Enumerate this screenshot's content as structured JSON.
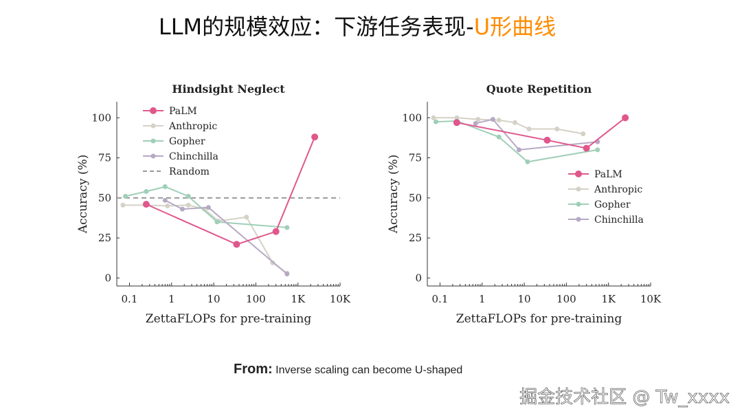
{
  "slide": {
    "title_main": "LLM的规模效应：下游任务表现-",
    "title_accent": "U形曲线",
    "accent_color": "#ff8c00"
  },
  "source": {
    "label": "From:",
    "text": "Inverse scaling can become U-shaped"
  },
  "watermark": "掘金技术社区 @ Tw_xxxx",
  "chart_data": [
    {
      "type": "line",
      "title": "Hindsight Neglect",
      "xlabel": "ZettaFLOPs for pre-training",
      "ylabel": "Accuracy (%)",
      "xscale": "log",
      "xlim": [
        0.05,
        10000
      ],
      "ylim": [
        -5,
        110
      ],
      "xticks": [
        0.1,
        1,
        10,
        100,
        1000,
        10000
      ],
      "xtick_labels": [
        "0.1",
        "1",
        "10",
        "100",
        "1K",
        "10K"
      ],
      "yticks": [
        0,
        25,
        50,
        75,
        100
      ],
      "legend_position": "top-left",
      "reference_line": {
        "name": "Random",
        "y": 50
      },
      "series": [
        {
          "name": "PaLM",
          "color": "#e0578c",
          "points": [
            [
              0.25,
              46
            ],
            [
              35,
              21
            ],
            [
              300,
              29
            ],
            [
              2500,
              88
            ]
          ]
        },
        {
          "name": "Anthropic",
          "color": "#d5d1c6",
          "points": [
            [
              0.07,
              45.5
            ],
            [
              0.25,
              45.5
            ],
            [
              0.8,
              45
            ],
            [
              2.5,
              45.5
            ],
            [
              6,
              43
            ],
            [
              13,
              35.5
            ],
            [
              60,
              38
            ],
            [
              250,
              9.5
            ],
            [
              550,
              3
            ]
          ]
        },
        {
          "name": "Gopher",
          "color": "#9fcfb7",
          "points": [
            [
              0.08,
              51
            ],
            [
              0.25,
              54
            ],
            [
              0.7,
              57
            ],
            [
              2.5,
              51
            ],
            [
              12,
              35
            ],
            [
              550,
              31.5
            ]
          ]
        },
        {
          "name": "Chinchilla",
          "color": "#b7a9c5",
          "points": [
            [
              0.7,
              48.5
            ],
            [
              1.8,
              43
            ],
            [
              7.5,
              44
            ],
            [
              550,
              2.5
            ]
          ]
        }
      ]
    },
    {
      "type": "line",
      "title": "Quote Repetition",
      "xlabel": "ZettaFLOPs for pre-training",
      "ylabel": "Accuracy (%)",
      "xscale": "log",
      "xlim": [
        0.05,
        10000
      ],
      "ylim": [
        -5,
        110
      ],
      "xticks": [
        0.1,
        1,
        10,
        100,
        1000,
        10000
      ],
      "xtick_labels": [
        "0.1",
        "1",
        "10",
        "100",
        "1K",
        "10K"
      ],
      "yticks": [
        0,
        25,
        50,
        75,
        100
      ],
      "legend_position": "middle-right",
      "series": [
        {
          "name": "PaLM",
          "color": "#e0578c",
          "points": [
            [
              0.25,
              97
            ],
            [
              35,
              86
            ],
            [
              300,
              81
            ],
            [
              2500,
              100
            ]
          ]
        },
        {
          "name": "Anthropic",
          "color": "#d5d1c6",
          "points": [
            [
              0.07,
              100
            ],
            [
              0.25,
              100
            ],
            [
              0.8,
              99
            ],
            [
              2.5,
              98.5
            ],
            [
              6,
              97
            ],
            [
              13,
              93
            ],
            [
              60,
              93
            ],
            [
              250,
              90
            ]
          ]
        },
        {
          "name": "Gopher",
          "color": "#9fcfb7",
          "points": [
            [
              0.08,
              97.5
            ],
            [
              0.25,
              98
            ],
            [
              2.5,
              88
            ],
            [
              12,
              72.5
            ],
            [
              550,
              80
            ]
          ]
        },
        {
          "name": "Chinchilla",
          "color": "#b7a9c5",
          "points": [
            [
              0.7,
              96.5
            ],
            [
              1.8,
              99
            ],
            [
              7.5,
              80
            ],
            [
              550,
              85
            ]
          ]
        }
      ]
    }
  ]
}
